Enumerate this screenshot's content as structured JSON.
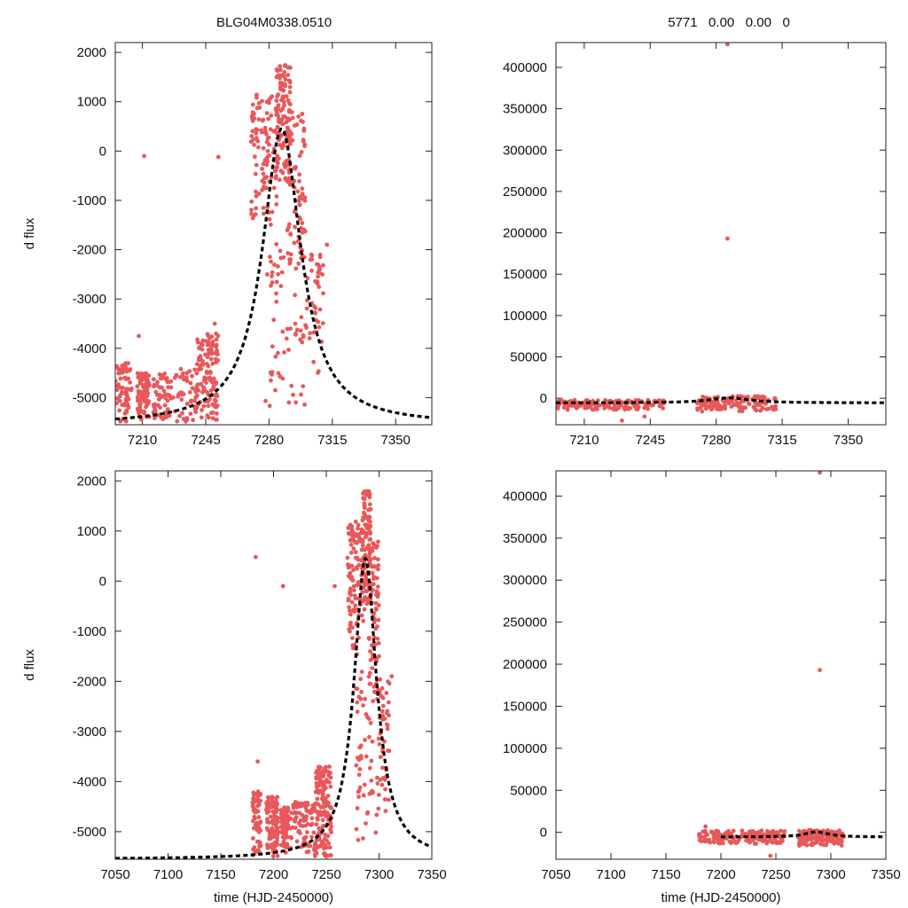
{
  "titles": {
    "left": "BLG04M0338.0510",
    "right": "5771   0.00   0.00   0"
  },
  "colors": {
    "points": "#e8585a",
    "model": "#000000"
  },
  "chart_data": [
    {
      "id": "top-left",
      "type": "scatter",
      "xlim": [
        7195,
        7370
      ],
      "ylim": [
        -5550,
        2200
      ],
      "xticks": [
        7210,
        7245,
        7280,
        7315,
        7350
      ],
      "xtick_labels": [
        "7210",
        "7245",
        "7280",
        "7315",
        "7350"
      ],
      "yticks": [
        -5000,
        -4000,
        -3000,
        -2000,
        -1000,
        0,
        1000,
        2000
      ],
      "ytick_labels": [
        "-5000",
        "-4000",
        "-3000",
        "-2000",
        "-1000",
        "0",
        "1000",
        "2000"
      ],
      "ylabel": "d flux",
      "xlabel": "",
      "model": {
        "t0": 7287,
        "peak": 450,
        "base": -5550,
        "amp": 6000,
        "w": 13,
        "xmax": 7370
      },
      "points": [
        {
          "t": [
            7195,
            7204
          ],
          "y": [
            -5500,
            -4300
          ],
          "n": 70
        },
        {
          "t": [
            7207,
            7214
          ],
          "y": [
            -5450,
            -4500
          ],
          "n": 90
        },
        {
          "t": [
            7216,
            7226
          ],
          "y": [
            -5500,
            -4500
          ],
          "n": 55
        },
        {
          "t": [
            7227,
            7240
          ],
          "y": [
            -5500,
            -4400
          ],
          "n": 45
        },
        {
          "t": [
            7240,
            7252
          ],
          "y": [
            -5500,
            -3700
          ],
          "n": 130
        },
        {
          "t": [
            7270,
            7285
          ],
          "y": [
            -1500,
            1200
          ],
          "n": 110
        },
        {
          "t": [
            7284,
            7292
          ],
          "y": [
            -600,
            1800
          ],
          "n": 110
        },
        {
          "t": [
            7290,
            7300
          ],
          "y": [
            -2400,
            800
          ],
          "n": 80
        },
        {
          "t": [
            7300,
            7310
          ],
          "y": [
            -4600,
            -1900
          ],
          "n": 45
        },
        {
          "t": [
            7278,
            7300
          ],
          "y": [
            -5200,
            -1800
          ],
          "n": 60
        }
      ],
      "outliers": [
        [
          7211,
          -100
        ],
        [
          7252,
          -120
        ],
        [
          7208,
          -3750
        ],
        [
          7250,
          -3500
        ],
        [
          7312,
          -1900
        ]
      ]
    },
    {
      "id": "top-right",
      "type": "scatter",
      "xlim": [
        7195,
        7370
      ],
      "ylim": [
        -32000,
        430000
      ],
      "xticks": [
        7210,
        7245,
        7280,
        7315,
        7350
      ],
      "xtick_labels": [
        "7210",
        "7245",
        "7280",
        "7315",
        "7350"
      ],
      "yticks": [
        0,
        50000,
        100000,
        150000,
        200000,
        250000,
        300000,
        350000,
        400000
      ],
      "ytick_labels": [
        "0",
        "50000",
        "100000",
        "150000",
        "200000",
        "250000",
        "300000",
        "350000",
        "400000"
      ],
      "ylabel": "",
      "xlabel": "",
      "model": {
        "t0": 7287,
        "peak": 500,
        "base": -5550,
        "amp": 6000,
        "w": 13,
        "xmax": 7370
      },
      "points": [
        {
          "t": [
            7195,
            7254
          ],
          "y": [
            -14000,
            -2000
          ],
          "n": 150
        },
        {
          "t": [
            7270,
            7312
          ],
          "y": [
            -16000,
            2500
          ],
          "n": 140
        }
      ],
      "outliers": [
        [
          7286,
          193000
        ],
        [
          7286,
          428000
        ],
        [
          7230,
          -27000
        ],
        [
          7242,
          -22000
        ]
      ]
    },
    {
      "id": "bottom-left",
      "type": "scatter",
      "xlim": [
        7050,
        7350
      ],
      "ylim": [
        -5550,
        2200
      ],
      "xticks": [
        7050,
        7100,
        7150,
        7200,
        7250,
        7300,
        7350
      ],
      "xtick_labels": [
        "7050",
        "7100",
        "7150",
        "7200",
        "7250",
        "7300",
        "7350"
      ],
      "yticks": [
        -5000,
        -4000,
        -3000,
        -2000,
        -1000,
        0,
        1000,
        2000
      ],
      "ytick_labels": [
        "-5000",
        "-4000",
        "-3000",
        "-2000",
        "-1000",
        "0",
        "1000",
        "2000"
      ],
      "ylabel": "d flux",
      "xlabel": "time (HJD-2450000)",
      "model": {
        "t0": 7287,
        "peak": 450,
        "base": -5550,
        "amp": 6000,
        "w": 13,
        "xmax": 7350
      },
      "points": [
        {
          "t": [
            7180,
            7188
          ],
          "y": [
            -5500,
            -4200
          ],
          "n": 60
        },
        {
          "t": [
            7193,
            7204
          ],
          "y": [
            -5500,
            -4300
          ],
          "n": 110
        },
        {
          "t": [
            7207,
            7214
          ],
          "y": [
            -5450,
            -4500
          ],
          "n": 70
        },
        {
          "t": [
            7216,
            7240
          ],
          "y": [
            -5500,
            -4400
          ],
          "n": 90
        },
        {
          "t": [
            7240,
            7255
          ],
          "y": [
            -5500,
            -3700
          ],
          "n": 140
        },
        {
          "t": [
            7270,
            7285
          ],
          "y": [
            -1500,
            1200
          ],
          "n": 110
        },
        {
          "t": [
            7284,
            7292
          ],
          "y": [
            -600,
            1800
          ],
          "n": 110
        },
        {
          "t": [
            7290,
            7300
          ],
          "y": [
            -2400,
            800
          ],
          "n": 80
        },
        {
          "t": [
            7300,
            7310
          ],
          "y": [
            -4600,
            -1900
          ],
          "n": 45
        },
        {
          "t": [
            7278,
            7300
          ],
          "y": [
            -5200,
            -1800
          ],
          "n": 60
        }
      ],
      "outliers": [
        [
          7183,
          480
        ],
        [
          7209,
          -100
        ],
        [
          7258,
          -100
        ],
        [
          7185,
          -3600
        ],
        [
          7312,
          -1900
        ]
      ]
    },
    {
      "id": "bottom-right",
      "type": "scatter",
      "xlim": [
        7050,
        7350
      ],
      "ylim": [
        -32000,
        430000
      ],
      "xticks": [
        7050,
        7100,
        7150,
        7200,
        7250,
        7300,
        7350
      ],
      "xtick_labels": [
        "7050",
        "7100",
        "7150",
        "7200",
        "7250",
        "7300",
        "7350"
      ],
      "yticks": [
        0,
        50000,
        100000,
        150000,
        200000,
        250000,
        300000,
        350000,
        400000
      ],
      "ytick_labels": [
        "0",
        "50000",
        "100000",
        "150000",
        "200000",
        "250000",
        "300000",
        "350000",
        "400000"
      ],
      "ylabel": "",
      "xlabel": "time (HJD-2450000)",
      "model": {
        "t0": 7287,
        "peak": 500,
        "base": -5550,
        "amp": 6000,
        "w": 13,
        "xmin": 7200,
        "xmax": 7350
      },
      "points": [
        {
          "t": [
            7180,
            7258
          ],
          "y": [
            -14000,
            2000
          ],
          "n": 180
        },
        {
          "t": [
            7270,
            7312
          ],
          "y": [
            -16000,
            3000
          ],
          "n": 140
        }
      ],
      "outliers": [
        [
          7290,
          193000
        ],
        [
          7290,
          428000
        ],
        [
          7186,
          7000
        ],
        [
          7245,
          -28000
        ]
      ]
    }
  ]
}
